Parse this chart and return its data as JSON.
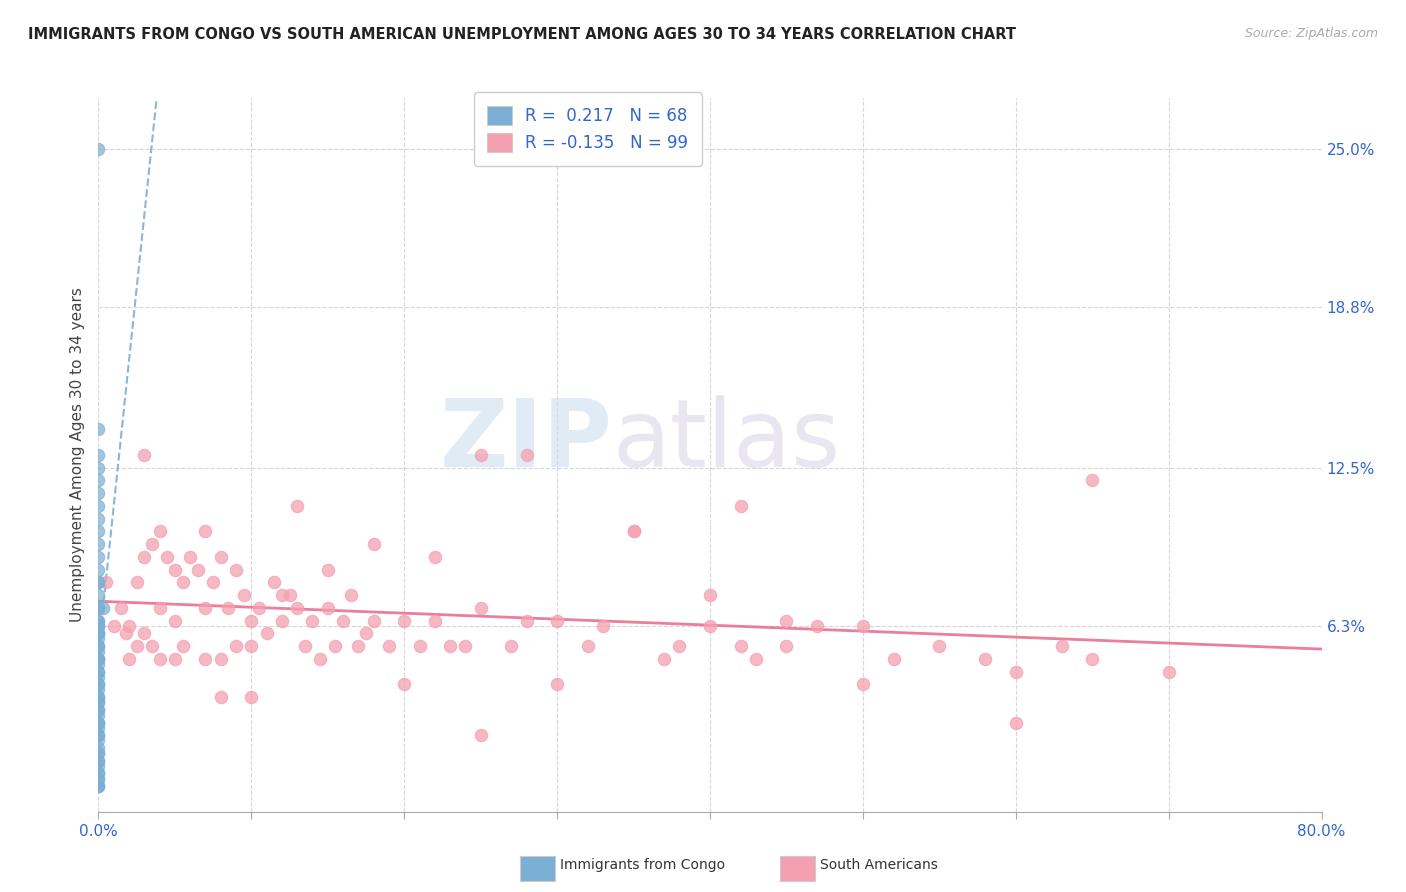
{
  "title": "IMMIGRANTS FROM CONGO VS SOUTH AMERICAN UNEMPLOYMENT AMONG AGES 30 TO 34 YEARS CORRELATION CHART",
  "source": "Source: ZipAtlas.com",
  "ylabel": "Unemployment Among Ages 30 to 34 years",
  "ytick_labels": [
    "6.3%",
    "12.5%",
    "18.8%",
    "25.0%"
  ],
  "ytick_values": [
    0.063,
    0.125,
    0.188,
    0.25
  ],
  "xlim": [
    0.0,
    0.8
  ],
  "ylim": [
    -0.01,
    0.27
  ],
  "congo_color": "#7bafd4",
  "south_american_color": "#f4a0b0",
  "congo_R": 0.217,
  "congo_N": 68,
  "south_R": -0.135,
  "south_N": 99,
  "background_color": "#ffffff",
  "grid_color": "#cccccc",
  "watermark_zip": "ZIP",
  "watermark_atlas": "atlas",
  "congo_scatter_x": [
    0.0,
    0.0,
    0.0,
    0.0,
    0.0,
    0.0,
    0.0,
    0.0,
    0.0,
    0.0,
    0.0,
    0.0,
    0.0,
    0.0,
    0.0,
    0.0,
    0.0,
    0.0,
    0.0,
    0.0,
    0.0,
    0.0,
    0.0,
    0.0,
    0.0,
    0.0,
    0.0,
    0.0,
    0.0,
    0.0,
    0.0,
    0.0,
    0.0,
    0.0,
    0.0,
    0.0,
    0.0,
    0.0,
    0.0,
    0.0,
    0.0,
    0.0,
    0.0,
    0.0,
    0.0,
    0.0,
    0.0,
    0.0,
    0.0,
    0.0,
    0.0,
    0.0,
    0.0,
    0.0,
    0.0,
    0.0,
    0.0,
    0.0,
    0.0,
    0.0,
    0.0,
    0.0,
    0.0,
    0.0,
    0.0,
    0.0,
    0.0,
    0.003
  ],
  "congo_scatter_y": [
    0.25,
    0.14,
    0.13,
    0.125,
    0.12,
    0.115,
    0.11,
    0.105,
    0.1,
    0.095,
    0.09,
    0.085,
    0.08,
    0.08,
    0.075,
    0.07,
    0.07,
    0.07,
    0.065,
    0.065,
    0.063,
    0.063,
    0.063,
    0.06,
    0.06,
    0.06,
    0.058,
    0.055,
    0.055,
    0.053,
    0.05,
    0.05,
    0.05,
    0.048,
    0.045,
    0.045,
    0.043,
    0.04,
    0.04,
    0.038,
    0.035,
    0.035,
    0.033,
    0.033,
    0.03,
    0.03,
    0.028,
    0.025,
    0.025,
    0.025,
    0.023,
    0.02,
    0.02,
    0.018,
    0.015,
    0.013,
    0.013,
    0.01,
    0.01,
    0.008,
    0.005,
    0.005,
    0.003,
    0.003,
    0.0,
    0.0,
    0.0,
    0.07
  ],
  "south_scatter_x": [
    0.005,
    0.01,
    0.015,
    0.018,
    0.02,
    0.02,
    0.025,
    0.025,
    0.03,
    0.03,
    0.035,
    0.035,
    0.04,
    0.04,
    0.04,
    0.045,
    0.05,
    0.05,
    0.05,
    0.055,
    0.055,
    0.06,
    0.065,
    0.07,
    0.07,
    0.075,
    0.08,
    0.08,
    0.085,
    0.09,
    0.09,
    0.095,
    0.1,
    0.1,
    0.105,
    0.11,
    0.115,
    0.12,
    0.125,
    0.13,
    0.135,
    0.14,
    0.145,
    0.15,
    0.155,
    0.16,
    0.165,
    0.17,
    0.175,
    0.18,
    0.19,
    0.2,
    0.21,
    0.22,
    0.23,
    0.24,
    0.25,
    0.27,
    0.28,
    0.3,
    0.32,
    0.33,
    0.35,
    0.37,
    0.38,
    0.4,
    0.42,
    0.43,
    0.45,
    0.47,
    0.5,
    0.52,
    0.55,
    0.58,
    0.6,
    0.63,
    0.65,
    0.7,
    0.25,
    0.35,
    0.13,
    0.18,
    0.08,
    0.1,
    0.12,
    0.15,
    0.22,
    0.28,
    0.4,
    0.45,
    0.5,
    0.3,
    0.2,
    0.6,
    0.07,
    0.03,
    0.25,
    0.42,
    0.65
  ],
  "south_scatter_y": [
    0.08,
    0.063,
    0.07,
    0.06,
    0.063,
    0.05,
    0.08,
    0.055,
    0.09,
    0.06,
    0.095,
    0.055,
    0.1,
    0.07,
    0.05,
    0.09,
    0.085,
    0.065,
    0.05,
    0.08,
    0.055,
    0.09,
    0.085,
    0.07,
    0.05,
    0.08,
    0.09,
    0.05,
    0.07,
    0.085,
    0.055,
    0.075,
    0.065,
    0.055,
    0.07,
    0.06,
    0.08,
    0.065,
    0.075,
    0.07,
    0.055,
    0.065,
    0.05,
    0.07,
    0.055,
    0.065,
    0.075,
    0.055,
    0.06,
    0.065,
    0.055,
    0.065,
    0.055,
    0.065,
    0.055,
    0.055,
    0.07,
    0.055,
    0.13,
    0.065,
    0.055,
    0.063,
    0.1,
    0.05,
    0.055,
    0.063,
    0.055,
    0.05,
    0.055,
    0.063,
    0.063,
    0.05,
    0.055,
    0.05,
    0.045,
    0.055,
    0.05,
    0.045,
    0.13,
    0.1,
    0.11,
    0.095,
    0.035,
    0.035,
    0.075,
    0.085,
    0.09,
    0.065,
    0.075,
    0.065,
    0.04,
    0.04,
    0.04,
    0.025,
    0.1,
    0.13,
    0.02,
    0.11,
    0.12
  ]
}
